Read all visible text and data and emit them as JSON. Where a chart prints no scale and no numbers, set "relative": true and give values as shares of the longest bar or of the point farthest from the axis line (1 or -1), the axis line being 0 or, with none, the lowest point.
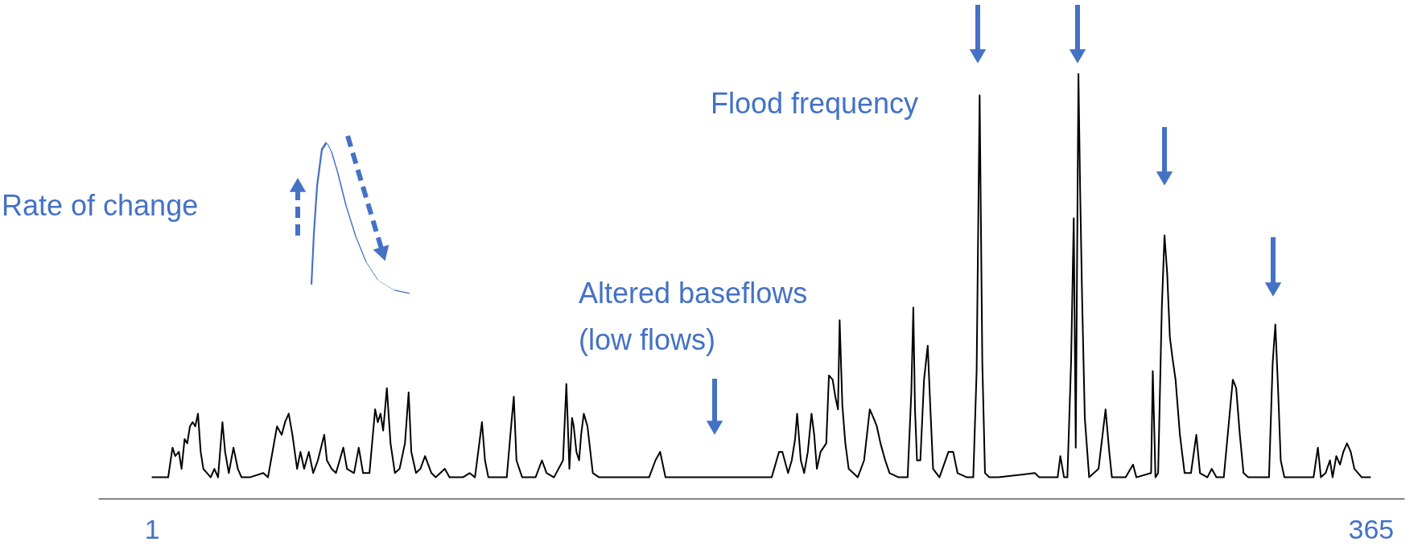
{
  "chart_data": {
    "type": "line",
    "relative": true,
    "xlim": [
      -15,
      375
    ],
    "xticks": [
      1,
      365
    ],
    "grid": false,
    "marker": "none",
    "line_style": "solid",
    "annotations": [
      "Rate of change",
      "Flood frequency",
      "Altered baseflows\n(low flows)"
    ],
    "series": [
      {
        "color": "#000000",
        "x": [
          1.0,
          5.9,
          7.2,
          8.0,
          9.1,
          9.9,
          10.8,
          11.6,
          12.4,
          13.2,
          14.0,
          14.8,
          15.6,
          16.4,
          17.5,
          18.6,
          19.7,
          20.8,
          22.1,
          22.9,
          24.0,
          25.4,
          26.7,
          27.8,
          30.3,
          34.3,
          35.7,
          38.4,
          39.8,
          40.8,
          41.9,
          43.0,
          44.4,
          45.4,
          46.5,
          47.9,
          49.2,
          50.6,
          52.5,
          53.3,
          54.7,
          56.0,
          58.2,
          59.3,
          61.4,
          62.8,
          64.1,
          66.0,
          67.7,
          68.5,
          69.3,
          70.1,
          71.2,
          72.3,
          73.6,
          75.0,
          76.6,
          77.7,
          78.5,
          79.9,
          81.2,
          82.6,
          84.5,
          85.8,
          88.5,
          89.9,
          93.9,
          95.9,
          97.5,
          98.8,
          99.6,
          100.5,
          101.5,
          104.8,
          107.0,
          108.3,
          109.1,
          109.9,
          111.6,
          115.6,
          117.5,
          118.9,
          121.1,
          123.8,
          124.8,
          125.7,
          126.5,
          127.0,
          127.8,
          128.6,
          129.2,
          130.0,
          131.1,
          132.7,
          134.6,
          137.3,
          149.5,
          151.4,
          152.8,
          154.4,
          161.7,
          172.5,
          186.1,
          188.3,
          189.3,
          191.0,
          192.1,
          193.1,
          193.7,
          194.8,
          195.8,
          196.9,
          198.0,
          198.8,
          199.6,
          200.7,
          202.4,
          203.2,
          204.3,
          205.1,
          205.9,
          206.4,
          207.2,
          208.1,
          209.1,
          211.8,
          213.7,
          215.4,
          216.5,
          217.5,
          218.6,
          220.0,
          221.3,
          224.0,
          226.7,
          227.8,
          228.4,
          228.9,
          229.5,
          230.5,
          231.6,
          232.7,
          233.5,
          234.3,
          236.2,
          238.9,
          240.3,
          241.6,
          244.4,
          246.3,
          247.3,
          248.2,
          249.0,
          249.8,
          251.1,
          253.8,
          264.7,
          266.0,
          271.5,
          272.3,
          273.4,
          274.4,
          275.5,
          276.3,
          276.9,
          277.7,
          278.2,
          278.8,
          279.6,
          280.9,
          283.7,
          285.8,
          286.9,
          287.7,
          291.8,
          294.0,
          295.0,
          299.4,
          299.9,
          300.7,
          301.5,
          302.6,
          303.4,
          304.2,
          305.0,
          305.8,
          306.7,
          308.0,
          309.4,
          311.3,
          312.9,
          314.0,
          316.2,
          317.5,
          318.9,
          321.1,
          323.8,
          324.8,
          325.9,
          327.0,
          328.4,
          334.6,
          335.7,
          336.5,
          337.3,
          338.1,
          339.2,
          346.0,
          347.9,
          349.2,
          350.1,
          351.5,
          352.8,
          353.6,
          354.7,
          355.8,
          356.8,
          357.9,
          359.0,
          360.1,
          362.3,
          365.0
        ],
        "values": [
          0.05,
          0.05,
          0.12,
          0.1,
          0.11,
          0.07,
          0.14,
          0.13,
          0.17,
          0.18,
          0.17,
          0.2,
          0.11,
          0.07,
          0.06,
          0.05,
          0.07,
          0.05,
          0.18,
          0.11,
          0.06,
          0.12,
          0.07,
          0.05,
          0.05,
          0.06,
          0.05,
          0.17,
          0.15,
          0.18,
          0.2,
          0.15,
          0.07,
          0.11,
          0.07,
          0.11,
          0.06,
          0.09,
          0.15,
          0.09,
          0.07,
          0.06,
          0.12,
          0.07,
          0.06,
          0.12,
          0.06,
          0.06,
          0.21,
          0.18,
          0.2,
          0.16,
          0.26,
          0.13,
          0.06,
          0.07,
          0.13,
          0.25,
          0.11,
          0.06,
          0.07,
          0.1,
          0.06,
          0.05,
          0.07,
          0.05,
          0.05,
          0.06,
          0.05,
          0.13,
          0.18,
          0.09,
          0.05,
          0.05,
          0.05,
          0.17,
          0.24,
          0.09,
          0.05,
          0.05,
          0.09,
          0.06,
          0.05,
          0.09,
          0.27,
          0.07,
          0.19,
          0.17,
          0.11,
          0.09,
          0.15,
          0.2,
          0.17,
          0.06,
          0.05,
          0.05,
          0.05,
          0.09,
          0.11,
          0.05,
          0.05,
          0.05,
          0.05,
          0.11,
          0.11,
          0.06,
          0.09,
          0.14,
          0.2,
          0.09,
          0.06,
          0.11,
          0.2,
          0.15,
          0.07,
          0.11,
          0.13,
          0.29,
          0.28,
          0.24,
          0.21,
          0.42,
          0.22,
          0.13,
          0.07,
          0.05,
          0.09,
          0.21,
          0.19,
          0.17,
          0.13,
          0.09,
          0.06,
          0.05,
          0.05,
          0.25,
          0.45,
          0.21,
          0.09,
          0.09,
          0.28,
          0.36,
          0.21,
          0.07,
          0.05,
          0.11,
          0.11,
          0.06,
          0.05,
          0.05,
          0.3,
          0.95,
          0.32,
          0.06,
          0.05,
          0.05,
          0.06,
          0.05,
          0.05,
          0.1,
          0.05,
          0.05,
          0.32,
          0.66,
          0.12,
          1.0,
          0.73,
          0.47,
          0.19,
          0.05,
          0.07,
          0.21,
          0.11,
          0.05,
          0.05,
          0.08,
          0.05,
          0.06,
          0.3,
          0.05,
          0.06,
          0.45,
          0.62,
          0.53,
          0.38,
          0.33,
          0.28,
          0.15,
          0.06,
          0.06,
          0.15,
          0.06,
          0.05,
          0.07,
          0.05,
          0.05,
          0.28,
          0.26,
          0.15,
          0.06,
          0.05,
          0.05,
          0.32,
          0.41,
          0.26,
          0.09,
          0.05,
          0.05,
          0.05,
          0.12,
          0.05,
          0.06,
          0.09,
          0.05,
          0.1,
          0.08,
          0.11,
          0.13,
          0.11,
          0.07,
          0.05,
          0.05
        ]
      }
    ]
  }
}
